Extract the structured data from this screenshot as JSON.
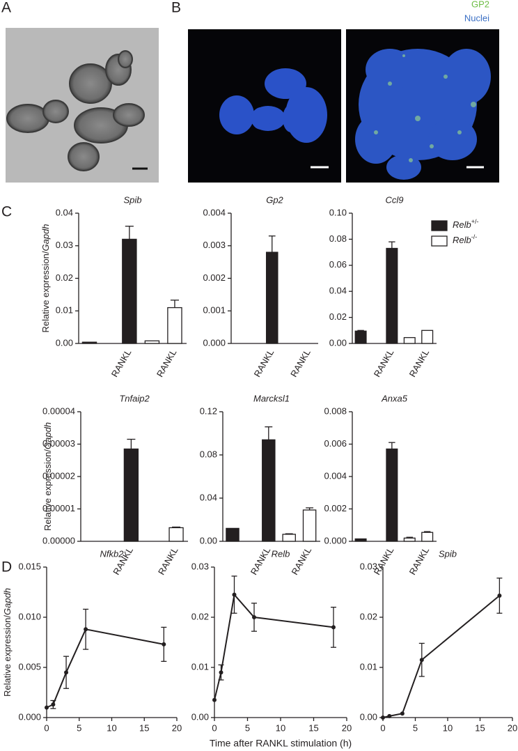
{
  "panel_labels": [
    "A",
    "B",
    "C",
    "D"
  ],
  "image_legend": [
    "GP2",
    "Nuclei"
  ],
  "chart_data": [
    {
      "type": "bar",
      "title": "Spib",
      "ylabel": "Relative expression/Gapdh",
      "categories": [
        null,
        "RANKL",
        null,
        "RANKL"
      ],
      "ylim": [
        0,
        0.04
      ],
      "yticks": [
        {
          "value": 0,
          "label": "0.00"
        },
        0.01,
        0.02,
        0.03,
        0.04
      ],
      "series": [
        {
          "color": "#231f20",
          "values": [
            0.0004,
            0.032,
            null,
            null
          ],
          "errors": [
            null,
            0.004,
            null,
            null
          ]
        },
        {
          "color": "#ffffff",
          "values": [
            null,
            null,
            0.0008,
            0.011
          ],
          "errors": [
            null,
            null,
            null,
            0.0023
          ]
        }
      ]
    },
    {
      "type": "bar",
      "title": "Gp2",
      "categories": [
        null,
        "RANKL",
        null,
        "RANKL"
      ],
      "ylim": [
        0,
        0.004
      ],
      "yticks": [
        {
          "value": 0,
          "label": "0.000"
        },
        0.001,
        0.002,
        0.003,
        0.004
      ],
      "series": [
        {
          "color": "#231f20",
          "values": [
            0,
            0.0028,
            null,
            null
          ],
          "errors": [
            null,
            0.0005,
            null,
            null
          ]
        },
        {
          "color": "#ffffff",
          "values": [
            null,
            null,
            0,
            0
          ],
          "errors": [
            null,
            null,
            null,
            null
          ]
        }
      ]
    },
    {
      "type": "bar",
      "title": "Ccl9",
      "categories": [
        null,
        "RANKL",
        null,
        "RANKL"
      ],
      "legend": "right",
      "ylim": [
        0,
        0.1
      ],
      "yticks": [
        {
          "value": 0,
          "label": "0.00"
        },
        0.02,
        0.04,
        0.06,
        0.08,
        {
          "value": 0.1,
          "label": "0.10"
        }
      ],
      "series": [
        {
          "name": "Relb+/-",
          "color": "#231f20",
          "values": [
            0.0095,
            0.073,
            null,
            null
          ],
          "errors": [
            0.0005,
            0.005,
            null,
            null
          ]
        },
        {
          "name": "Relb-/-",
          "color": "#ffffff",
          "values": [
            null,
            null,
            0.0045,
            0.01
          ],
          "errors": [
            null,
            null,
            null,
            null
          ]
        }
      ]
    },
    {
      "type": "bar",
      "title": "Tnfaip2",
      "ylabel": "Relative expression/Gapdh",
      "categories": [
        null,
        "RANKL",
        null,
        "RANKL"
      ],
      "ylim": [
        0,
        4e-05
      ],
      "yticks": [
        {
          "value": 0,
          "label": "0.00000"
        },
        1e-05,
        2e-05,
        3e-05,
        4e-05
      ],
      "series": [
        {
          "color": "#231f20",
          "values": [
            0,
            2.85e-05,
            null,
            null
          ],
          "errors": [
            null,
            3e-06,
            null,
            null
          ]
        },
        {
          "color": "#ffffff",
          "values": [
            null,
            null,
            0,
            4.2e-06
          ],
          "errors": [
            null,
            null,
            null,
            2e-07
          ]
        }
      ]
    },
    {
      "type": "bar",
      "title": "Marcksl1",
      "categories": [
        null,
        "RANKL",
        null,
        "RANKL"
      ],
      "ylim": [
        0,
        0.12
      ],
      "yticks": [
        {
          "value": 0,
          "label": "0.00"
        },
        0.04,
        0.08,
        0.12
      ],
      "series": [
        {
          "color": "#231f20",
          "values": [
            0.012,
            0.094,
            null,
            null
          ],
          "errors": [
            null,
            0.012,
            null,
            null
          ]
        },
        {
          "color": "#ffffff",
          "values": [
            null,
            null,
            0.0065,
            0.029
          ],
          "errors": [
            null,
            null,
            0.0005,
            0.002
          ]
        }
      ]
    },
    {
      "type": "bar",
      "title": "Anxa5",
      "categories": [
        null,
        "RANKL",
        null,
        "RANKL"
      ],
      "ylim": [
        0,
        0.008
      ],
      "yticks": [
        {
          "value": 0,
          "label": "0.000"
        },
        0.002,
        0.004,
        0.006,
        0.008
      ],
      "series": [
        {
          "color": "#231f20",
          "values": [
            0.00015,
            0.0057,
            null,
            null
          ],
          "errors": [
            null,
            0.0004,
            null,
            null
          ]
        },
        {
          "color": "#ffffff",
          "values": [
            null,
            null,
            0.0002,
            0.00055
          ],
          "errors": [
            null,
            null,
            5e-05,
            5e-05
          ]
        }
      ]
    },
    {
      "type": "line",
      "title": "Nfkb2",
      "ylabel": "Relative expression/Gapdh",
      "x": [
        0,
        1,
        3,
        6,
        18
      ],
      "xlim": [
        0,
        20
      ],
      "xticks": [
        0,
        5,
        10,
        15,
        20
      ],
      "ylim": [
        0,
        0.015
      ],
      "yticks": [
        {
          "value": 0,
          "label": "0.000"
        },
        0.005,
        {
          "value": 0.01,
          "label": "0.010"
        },
        0.015
      ],
      "series": [
        {
          "color": "#231f20",
          "values": [
            0.001,
            0.0013,
            0.0045,
            0.0088,
            0.0073
          ],
          "errors": [
            null,
            0.0004,
            0.0016,
            0.002,
            0.0017
          ]
        }
      ]
    },
    {
      "type": "line",
      "title": "Relb",
      "xlabel": "Time after RANKL stimulation (h)",
      "x": [
        0,
        1,
        3,
        6,
        18
      ],
      "xlim": [
        0,
        20
      ],
      "xticks": [
        0,
        5,
        10,
        15,
        20
      ],
      "ylim": [
        0,
        0.03
      ],
      "yticks": [
        {
          "value": 0,
          "label": "0.00"
        },
        0.01,
        0.02,
        0.03
      ],
      "series": [
        {
          "color": "#231f20",
          "values": [
            0.0035,
            0.009,
            0.0245,
            0.02,
            0.018
          ],
          "errors": [
            null,
            0.0015,
            0.0037,
            0.0028,
            0.004
          ]
        }
      ]
    },
    {
      "type": "line",
      "title": "Spib",
      "x": [
        0,
        1,
        3,
        6,
        18
      ],
      "xlim": [
        0,
        20
      ],
      "xticks": [
        0,
        5,
        10,
        15,
        20
      ],
      "ylim": [
        0,
        0.03
      ],
      "yticks": [
        {
          "value": 0,
          "label": "0.00"
        },
        0.01,
        0.02,
        0.03
      ],
      "series": [
        {
          "color": "#231f20",
          "values": [
            0,
            0.0003,
            0.0008,
            0.0115,
            0.0243
          ],
          "errors": [
            null,
            null,
            null,
            0.0033,
            0.0035
          ]
        }
      ]
    }
  ]
}
